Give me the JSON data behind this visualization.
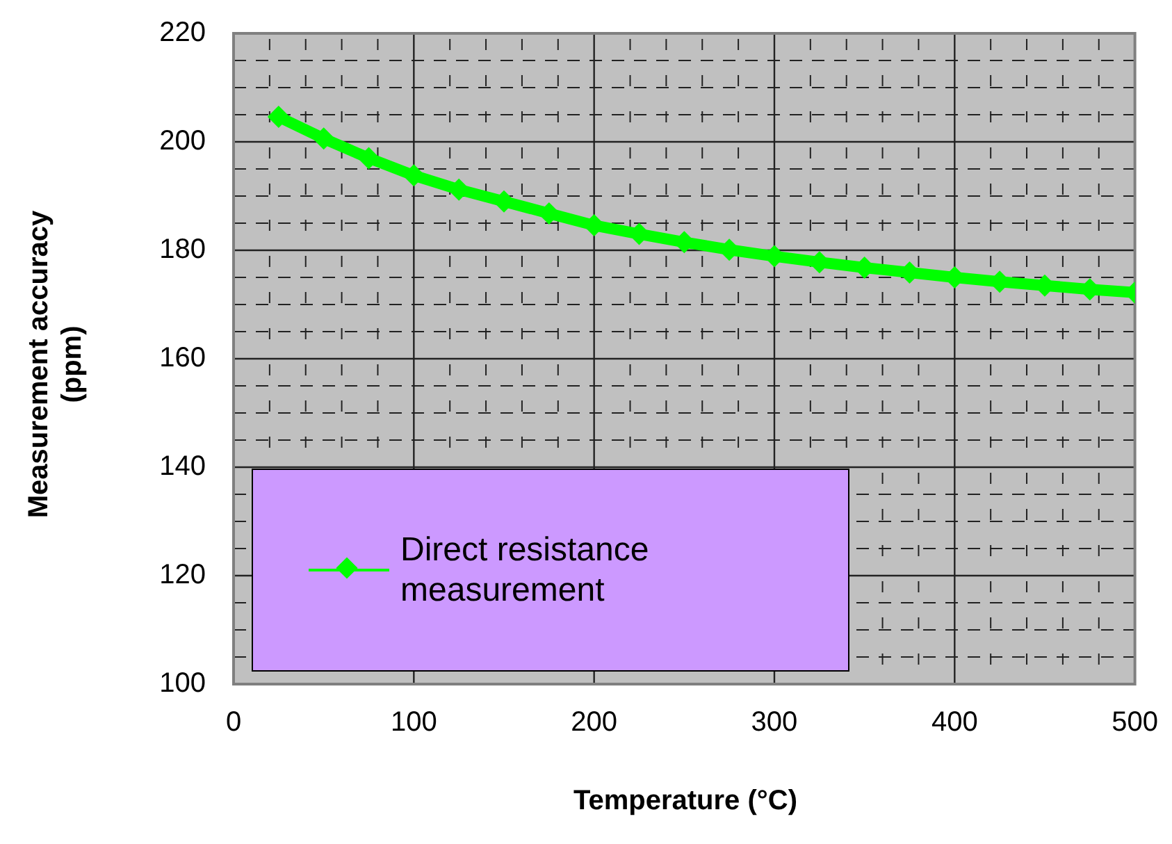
{
  "chart_data": {
    "type": "line",
    "xlabel": "Temperature (°C)",
    "ylabel": "Measurement accuracy (ppm)",
    "x": [
      25,
      50,
      75,
      100,
      125,
      150,
      175,
      200,
      225,
      250,
      275,
      300,
      325,
      350,
      375,
      400,
      425,
      450,
      475,
      500
    ],
    "series": [
      {
        "name": "Direct resistance measurement",
        "color": "#00ff00",
        "values": [
          204.6,
          200.6,
          197,
          193.8,
          191.2,
          189,
          186.8,
          184.6,
          183,
          181.5,
          180.1,
          178.9,
          177.8,
          176.8,
          175.9,
          175,
          174.2,
          173.5,
          172.8,
          172.2
        ]
      }
    ],
    "xlim": [
      0,
      500
    ],
    "xticks": [
      0,
      100,
      200,
      300,
      400,
      500
    ],
    "ylim": [
      100,
      220
    ],
    "yticks": [
      100,
      120,
      140,
      160,
      180,
      200,
      220
    ],
    "grid": true,
    "legend": "bottom left",
    "marker": "diamond",
    "line_style": "solid"
  }
}
